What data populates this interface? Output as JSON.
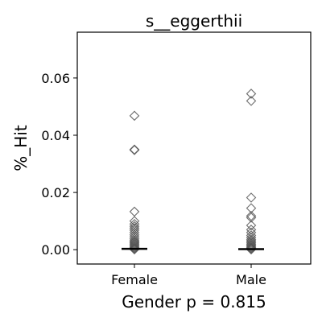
{
  "chart_data": {
    "type": "scatter",
    "title": "s__eggerthii",
    "xlabel": "Gender p = 0.815",
    "ylabel": "%_Hit",
    "categories": [
      "Female",
      "Male"
    ],
    "ylim": [
      -0.005,
      0.076
    ],
    "yticks": [
      0.0,
      0.02,
      0.04,
      0.06
    ],
    "ytick_labels": [
      "0.00",
      "0.02",
      "0.04",
      "0.06"
    ],
    "grid": false,
    "marker": "diamond",
    "marker_color": "#555555",
    "median_line_color": "#000000",
    "series": [
      {
        "category": "Female",
        "median": 0.0003,
        "values": [
          0.0468,
          0.035,
          0.0348,
          0.0133,
          0.01,
          0.009,
          0.0082,
          0.0075,
          0.0068,
          0.006,
          0.0052,
          0.0045,
          0.0038,
          0.0032,
          0.0028,
          0.0024,
          0.002,
          0.0016,
          0.0012,
          0.0008,
          0.0005,
          0.0003,
          0.0001
        ]
      },
      {
        "category": "Male",
        "median": 0.0002,
        "values": [
          0.0545,
          0.052,
          0.0182,
          0.0145,
          0.0118,
          0.0112,
          0.0085,
          0.007,
          0.006,
          0.005,
          0.0042,
          0.0035,
          0.003,
          0.0025,
          0.002,
          0.0016,
          0.0012,
          0.0008,
          0.0005,
          0.0003,
          0.0001
        ]
      }
    ]
  }
}
